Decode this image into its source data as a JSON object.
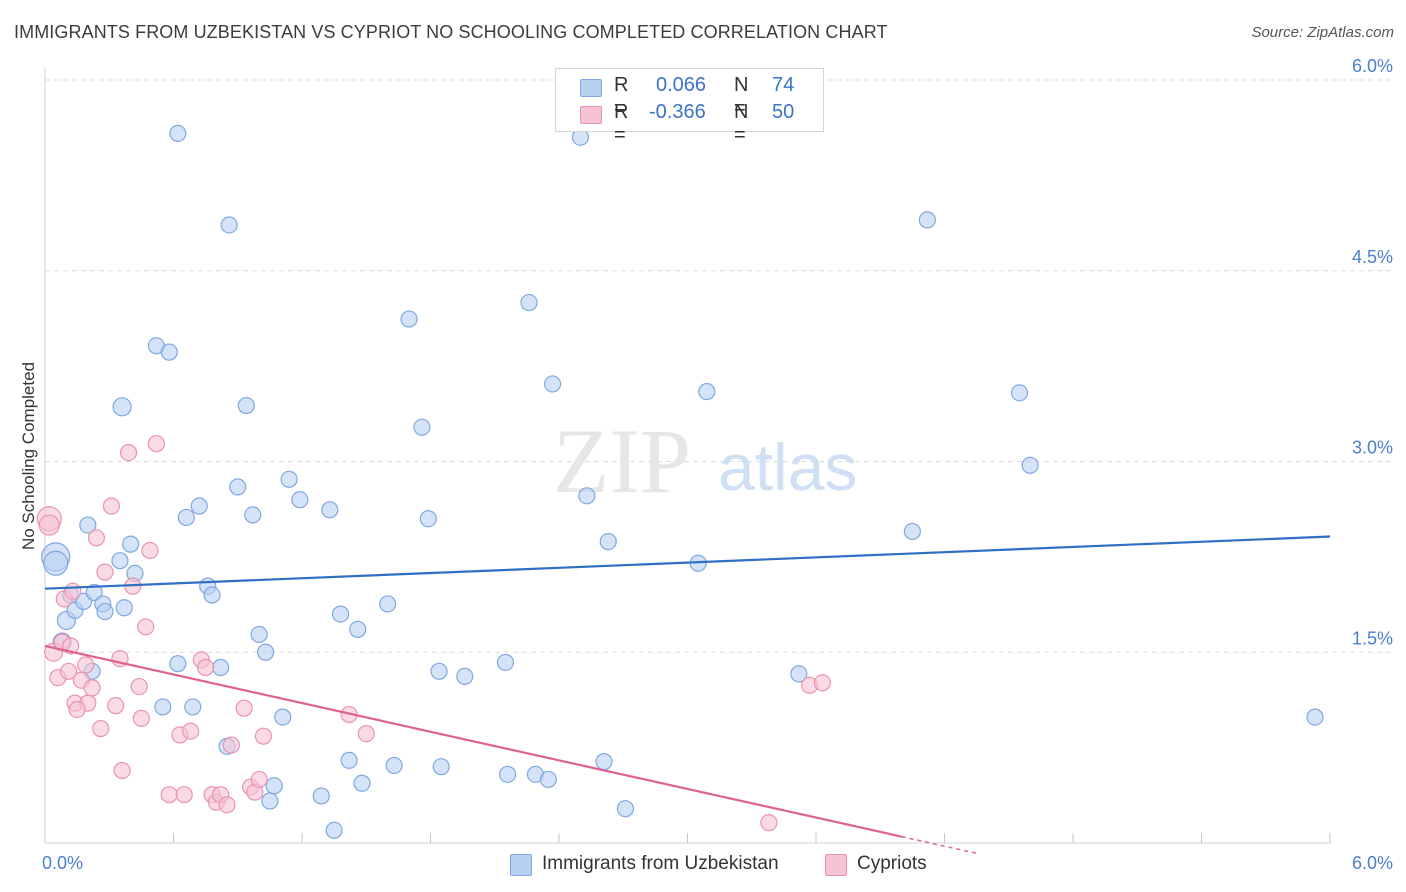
{
  "header": {
    "title": "IMMIGRANTS FROM UZBEKISTAN VS CYPRIOT NO SCHOOLING COMPLETED CORRELATION CHART",
    "source": "Source: ZipAtlas.com"
  },
  "watermark": {
    "part1": "ZIP",
    "part2": "atlas"
  },
  "legend": {
    "rows": [
      {
        "r_label": "R =",
        "r_value": "0.066",
        "n_label": "N =",
        "n_value": "74"
      },
      {
        "r_label": "R =",
        "r_value": "-0.366",
        "n_label": "N =",
        "n_value": "50"
      }
    ]
  },
  "bottom_legend": {
    "items": [
      {
        "label": "Immigrants from Uzbekistan"
      },
      {
        "label": "Cypriots"
      }
    ]
  },
  "colors": {
    "blue_fill": "#b8d1f2",
    "blue_stroke": "#7fa8e0",
    "blue_line": "#2f6fc4",
    "pink_fill": "#f7c3d4",
    "pink_stroke": "#e993b2",
    "pink_line": "#e0608f",
    "tick_label": "#4b7fd0",
    "grid": "#dcdcdc"
  },
  "chart_data": {
    "type": "scatter",
    "title": "IMMIGRANTS FROM UZBEKISTAN VS CYPRIOT NO SCHOOLING COMPLETED CORRELATION CHART",
    "xlabel": "",
    "ylabel": "No Schooling Completed",
    "xlim": [
      0,
      6.0
    ],
    "ylim": [
      0,
      6.0
    ],
    "x_tick_labels": [
      "0.0%",
      "6.0%"
    ],
    "y_ticks": [
      1.5,
      3.0,
      4.5,
      6.0
    ],
    "y_tick_labels": [
      "1.5%",
      "3.0%",
      "4.5%",
      "6.0%"
    ],
    "grid": true,
    "legend_placement": "top-center",
    "series": [
      {
        "name": "Immigrants from Uzbekistan",
        "color": "#b8d1f2",
        "r": 0.066,
        "n": 74,
        "trend": {
          "x0": 0.0,
          "y0": 2.0,
          "x1": 6.0,
          "y1": 2.41
        },
        "points": [
          [
            0.05,
            2.25,
            14
          ],
          [
            0.05,
            2.2,
            12
          ],
          [
            0.08,
            1.58,
            9
          ],
          [
            0.1,
            1.75,
            9
          ],
          [
            0.12,
            1.95,
            8
          ],
          [
            0.14,
            1.83,
            8
          ],
          [
            0.18,
            1.9,
            8
          ],
          [
            0.22,
            1.35,
            8
          ],
          [
            0.23,
            1.97,
            8
          ],
          [
            0.27,
            1.88,
            8
          ],
          [
            0.28,
            1.82,
            8
          ],
          [
            0.35,
            2.22,
            8
          ],
          [
            0.37,
            1.85,
            8
          ],
          [
            0.4,
            2.35,
            8
          ],
          [
            0.42,
            2.12,
            8
          ],
          [
            0.2,
            2.5,
            8
          ],
          [
            0.36,
            3.43,
            9
          ],
          [
            0.52,
            3.91,
            8
          ],
          [
            0.58,
            3.86,
            8
          ],
          [
            0.62,
            5.58,
            8
          ],
          [
            0.55,
            1.07,
            8
          ],
          [
            0.62,
            1.41,
            8
          ],
          [
            0.66,
            2.56,
            8
          ],
          [
            0.69,
            1.07,
            8
          ],
          [
            0.72,
            2.65,
            8
          ],
          [
            0.76,
            2.02,
            8
          ],
          [
            0.78,
            1.95,
            8
          ],
          [
            0.82,
            1.38,
            8
          ],
          [
            0.85,
            0.76,
            8
          ],
          [
            0.86,
            4.86,
            8
          ],
          [
            0.9,
            2.8,
            8
          ],
          [
            0.94,
            3.44,
            8
          ],
          [
            0.97,
            2.58,
            8
          ],
          [
            1.0,
            1.64,
            8
          ],
          [
            1.03,
            1.5,
            8
          ],
          [
            1.05,
            0.33,
            8
          ],
          [
            1.07,
            0.45,
            8
          ],
          [
            1.11,
            0.99,
            8
          ],
          [
            1.14,
            2.86,
            8
          ],
          [
            1.19,
            2.7,
            8
          ],
          [
            1.29,
            0.37,
            8
          ],
          [
            1.33,
            2.62,
            8
          ],
          [
            1.35,
            0.1,
            8
          ],
          [
            1.38,
            1.8,
            8
          ],
          [
            1.42,
            0.65,
            8
          ],
          [
            1.46,
            1.68,
            8
          ],
          [
            1.48,
            0.47,
            8
          ],
          [
            1.6,
            1.88,
            8
          ],
          [
            1.63,
            0.61,
            8
          ],
          [
            1.7,
            4.12,
            8
          ],
          [
            1.76,
            3.27,
            8
          ],
          [
            1.79,
            2.55,
            8
          ],
          [
            1.84,
            1.35,
            8
          ],
          [
            1.85,
            0.6,
            8
          ],
          [
            1.96,
            1.31,
            8
          ],
          [
            2.15,
            1.42,
            8
          ],
          [
            2.16,
            0.54,
            8
          ],
          [
            2.26,
            4.25,
            8
          ],
          [
            2.29,
            0.54,
            8
          ],
          [
            2.35,
            0.5,
            8
          ],
          [
            2.37,
            3.61,
            8
          ],
          [
            2.5,
            5.55,
            8
          ],
          [
            2.53,
            2.73,
            8
          ],
          [
            2.61,
            0.64,
            8
          ],
          [
            2.63,
            2.37,
            8
          ],
          [
            2.71,
            0.27,
            8
          ],
          [
            3.05,
            2.2,
            8
          ],
          [
            3.09,
            3.55,
            8
          ],
          [
            3.52,
            1.33,
            8
          ],
          [
            4.05,
            2.45,
            8
          ],
          [
            4.12,
            4.9,
            8
          ],
          [
            4.55,
            3.54,
            8
          ],
          [
            4.6,
            2.97,
            8
          ],
          [
            5.93,
            0.99,
            8
          ]
        ]
      },
      {
        "name": "Cypriots",
        "color": "#f7c3d4",
        "r": -0.366,
        "n": 50,
        "trend": {
          "x0": 0.0,
          "y0": 1.55,
          "x1": 4.0,
          "y1": 0.05
        },
        "points": [
          [
            0.02,
            2.55,
            12
          ],
          [
            0.02,
            2.5,
            10
          ],
          [
            0.04,
            1.5,
            9
          ],
          [
            0.06,
            1.3,
            8
          ],
          [
            0.08,
            1.58,
            8
          ],
          [
            0.09,
            1.92,
            8
          ],
          [
            0.11,
            1.35,
            8
          ],
          [
            0.12,
            1.55,
            8
          ],
          [
            0.13,
            1.98,
            8
          ],
          [
            0.14,
            1.1,
            8
          ],
          [
            0.17,
            1.28,
            8
          ],
          [
            0.19,
            1.4,
            8
          ],
          [
            0.2,
            1.1,
            8
          ],
          [
            0.22,
            1.22,
            8
          ],
          [
            0.24,
            2.4,
            8
          ],
          [
            0.26,
            0.9,
            8
          ],
          [
            0.28,
            2.13,
            8
          ],
          [
            0.31,
            2.65,
            8
          ],
          [
            0.33,
            1.08,
            8
          ],
          [
            0.35,
            1.45,
            8
          ],
          [
            0.36,
            0.57,
            8
          ],
          [
            0.39,
            3.07,
            8
          ],
          [
            0.41,
            2.02,
            8
          ],
          [
            0.44,
            1.23,
            8
          ],
          [
            0.47,
            1.7,
            8
          ],
          [
            0.49,
            2.3,
            8
          ],
          [
            0.52,
            3.14,
            8
          ],
          [
            0.58,
            0.38,
            8
          ],
          [
            0.63,
            0.85,
            8
          ],
          [
            0.65,
            0.38,
            8
          ],
          [
            0.68,
            0.88,
            8
          ],
          [
            0.73,
            1.44,
            8
          ],
          [
            0.75,
            1.38,
            8
          ],
          [
            0.78,
            0.38,
            8
          ],
          [
            0.8,
            0.32,
            8
          ],
          [
            0.82,
            0.38,
            8
          ],
          [
            0.85,
            0.3,
            8
          ],
          [
            0.87,
            0.77,
            8
          ],
          [
            0.93,
            1.06,
            8
          ],
          [
            0.96,
            0.44,
            8
          ],
          [
            0.98,
            0.4,
            8
          ],
          [
            1.0,
            0.5,
            8
          ],
          [
            1.02,
            0.84,
            8
          ],
          [
            1.42,
            1.01,
            8
          ],
          [
            1.5,
            0.86,
            8
          ],
          [
            3.38,
            0.16,
            8
          ],
          [
            3.57,
            1.24,
            8
          ],
          [
            3.63,
            1.26,
            8
          ],
          [
            0.15,
            1.05,
            8
          ],
          [
            0.45,
            0.98,
            8
          ]
        ]
      }
    ]
  }
}
